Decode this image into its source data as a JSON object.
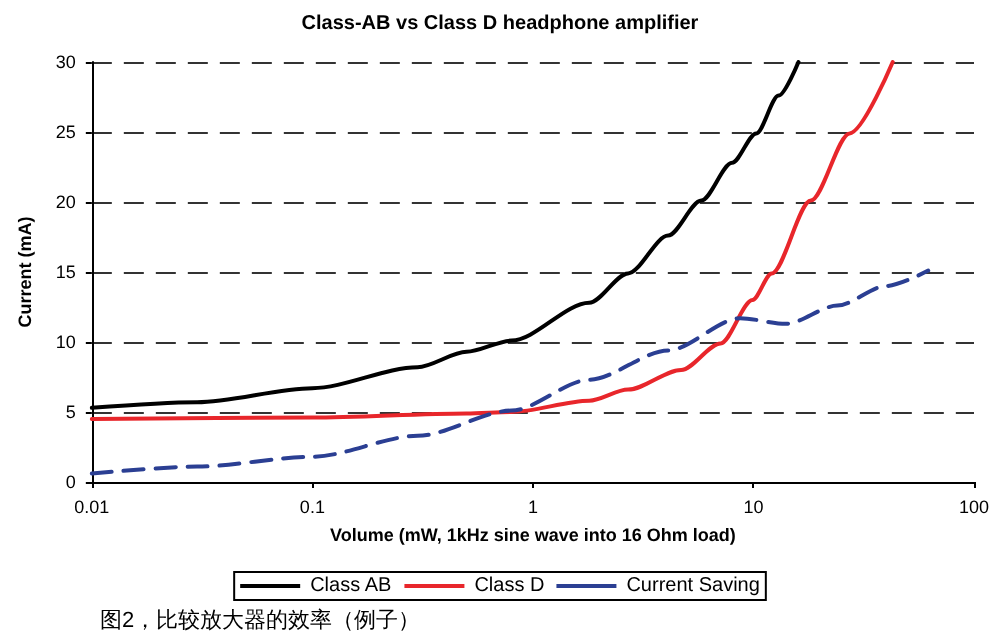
{
  "chart_data": {
    "type": "line",
    "title": "Class-AB vs Class D headphone amplifier",
    "xlabel": "Volume (mW, 1kHz sine wave into 16 Ohm load)",
    "ylabel": "Current (mA)",
    "annotations": [
      "图2，比较放大器的效率（例子）"
    ],
    "log": "x",
    "xlim": [
      0.01,
      100
    ],
    "xticks": [
      0.01,
      0.1,
      1,
      10,
      100
    ],
    "ylim": [
      0,
      30
    ],
    "yticks": [
      0,
      5,
      10,
      15,
      20,
      25,
      30
    ],
    "grid": "y",
    "legend": "bottom",
    "marker": "none",
    "series": [
      {
        "name": "Class AB",
        "color": "#000000",
        "line_style": "solid",
        "x": [
          0.01,
          0.03,
          0.1,
          0.3,
          0.5,
          0.8,
          1.8,
          2.7,
          4.1,
          5.8,
          8.0,
          10.3,
          13,
          16
        ],
        "values": [
          5.3,
          5.7,
          6.7,
          8.2,
          9.3,
          10.1,
          12.8,
          14.9,
          17.6,
          20.1,
          22.8,
          24.9,
          27.6,
          30
        ]
      },
      {
        "name": "Class D",
        "color": "#e8262b",
        "line_style": "solid",
        "x": [
          0.01,
          0.1,
          0.5,
          0.8,
          1.8,
          2.7,
          4.7,
          7.1,
          9.9,
          12.1,
          18.2,
          27.3,
          42.8
        ],
        "values": [
          4.5,
          4.6,
          4.9,
          5.0,
          5.8,
          6.6,
          8.0,
          9.9,
          13.0,
          14.9,
          20.1,
          24.9,
          30
        ]
      },
      {
        "name": "Current Saving",
        "color": "#2b3f93",
        "line_style": "dashed",
        "x": [
          0.01,
          0.03,
          0.1,
          0.3,
          0.8,
          1.8,
          4.1,
          8.7,
          14,
          24,
          40,
          62
        ],
        "values": [
          0.6,
          1.1,
          1.8,
          3.3,
          5.1,
          7.3,
          9.4,
          11.7,
          11.3,
          12.6,
          14.0,
          15.1
        ]
      }
    ]
  }
}
